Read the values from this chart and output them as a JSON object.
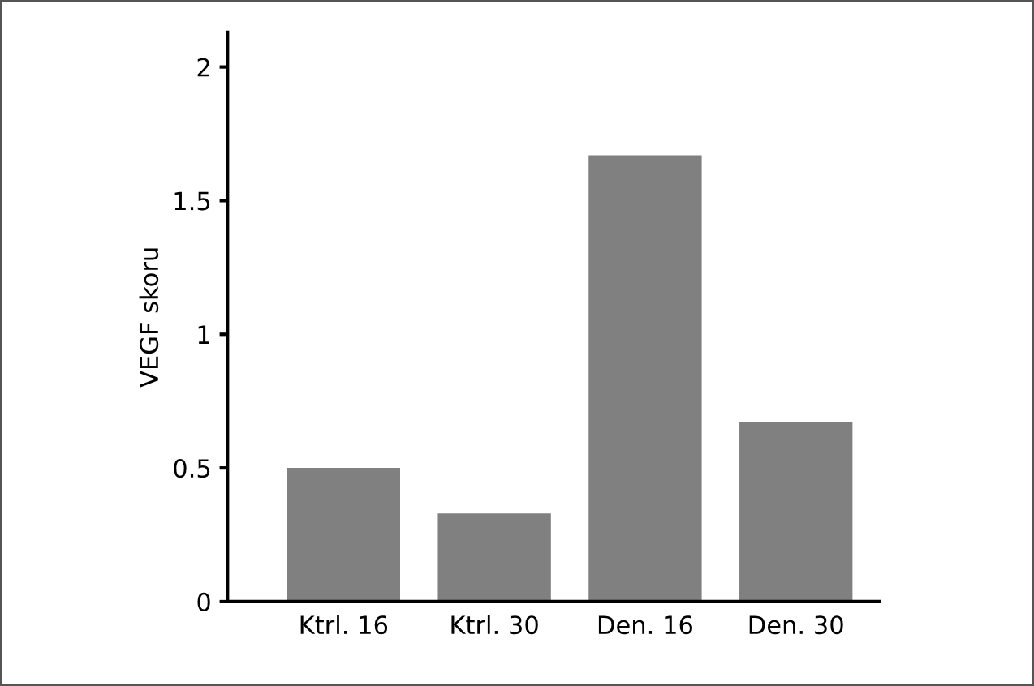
{
  "chart_data": {
    "type": "bar",
    "ylabel": "VEGF skoru",
    "categories": [
      "Ktrl. 16",
      "Ktrl. 30",
      "Den. 16",
      "Den. 30"
    ],
    "values": [
      0.5,
      0.33,
      1.67,
      0.67
    ],
    "color": "#808080",
    "ylim": [
      0,
      2.13
    ],
    "yticks": [
      0,
      0.5,
      1,
      1.5,
      2
    ],
    "grid": false,
    "legend": false
  }
}
